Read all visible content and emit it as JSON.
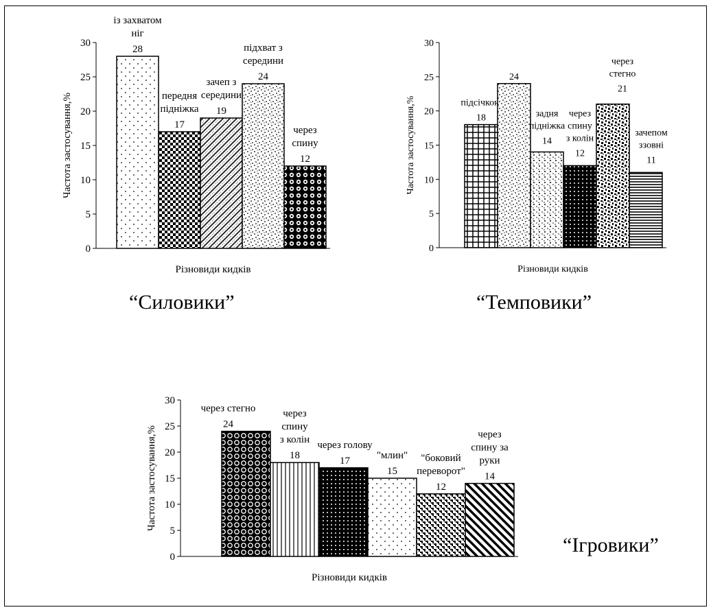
{
  "captions": {
    "c1": "“Силовики”",
    "c2": "“Темповики”",
    "c3": "“Ігровики”"
  },
  "chart_data": [
    {
      "type": "bar",
      "name": "Силовики",
      "ylabel": "Частота застосування,%",
      "xlabel": "Різновиди кидків",
      "ylim": [
        0,
        30
      ],
      "yticks": [
        0,
        5,
        10,
        15,
        20,
        25,
        30
      ],
      "categories": [
        "із захватом ніг",
        "передня підніжка",
        "зачеп з середини",
        "підхват з середини",
        "через спину"
      ],
      "values": [
        28,
        17,
        19,
        24,
        12
      ],
      "label_lines": [
        [
          "із захватом",
          "ніг"
        ],
        [
          "передня",
          "підніжка"
        ],
        [
          "зачеп з",
          "середини"
        ],
        [
          "підхват з",
          "середини"
        ],
        [
          "через",
          "спину"
        ]
      ],
      "patterns": [
        "dots",
        "checker",
        "diag",
        "speckle",
        "bigdots"
      ]
    },
    {
      "type": "bar",
      "name": "Темповики",
      "ylabel": "Частота застосування,%",
      "xlabel": "Різновиди кидків",
      "ylim": [
        0,
        30
      ],
      "yticks": [
        0,
        5,
        10,
        15,
        20,
        25,
        30
      ],
      "categories": [
        "підсічкою",
        "",
        "задня підніжка",
        "через спину з колін",
        "через стегно",
        "зачепом ззовні"
      ],
      "values": [
        18,
        24,
        14,
        12,
        21,
        11
      ],
      "label_lines": [
        [
          "підсічкою"
        ],
        [],
        [
          "задня",
          "підніжка"
        ],
        [
          "через",
          "спину",
          "з колін"
        ],
        [
          "через",
          "стегно"
        ],
        [
          "зачепом",
          "ззовні"
        ]
      ],
      "patterns": [
        "grid",
        "speckle",
        "speckle2",
        "blackdots",
        "mosaic",
        "hlines"
      ]
    },
    {
      "type": "bar",
      "name": "Ігровики",
      "ylabel": "Частота застосування,%",
      "xlabel": "Різновиди кидків",
      "ylim": [
        0,
        30
      ],
      "yticks": [
        0,
        5,
        10,
        15,
        20,
        25,
        30
      ],
      "categories": [
        "через стегно",
        "через спину з колін",
        "через голову",
        "\"млин\"",
        "\"боковий переворот\"",
        "через спину за руки"
      ],
      "values": [
        24,
        18,
        17,
        15,
        12,
        14
      ],
      "label_lines": [
        [
          "через стегно"
        ],
        [
          "через",
          "спину",
          "з колін"
        ],
        [
          "через голову"
        ],
        [
          "\"млин\""
        ],
        [
          "\"боковий",
          "переворот\""
        ],
        [
          "через",
          "спину за",
          "руки"
        ]
      ],
      "patterns": [
        "rings",
        "vlines",
        "blackdots",
        "dots",
        "weave",
        "diagbold"
      ]
    }
  ]
}
